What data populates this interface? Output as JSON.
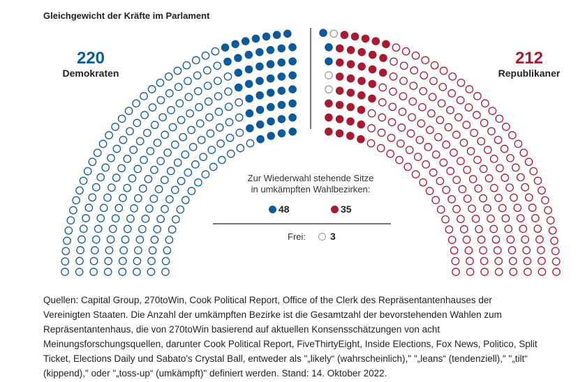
{
  "title": "Gleichgewicht der Kräfte im Parlament",
  "colors": {
    "democrat": "#0b5a9c",
    "republican": "#a9192f",
    "vacant": "#9a9a9a",
    "divider": "#777777"
  },
  "chart_data": {
    "type": "parliament",
    "total_seats": 435,
    "rings": 8,
    "parties": [
      {
        "name": "Demokraten",
        "seats": 220,
        "contested": 48
      },
      {
        "name": "Republikaner",
        "seats": 212,
        "contested": 35
      }
    ],
    "vacant": 3,
    "legend": {
      "heading_line1": "Zur Wiederwahl stehende Sitze",
      "heading_line2": "in umkämpften Wahlbezirken:",
      "dem_contested": "48",
      "rep_contested": "35",
      "vacant_label": "Frei:",
      "vacant_value": "3"
    }
  },
  "left_label": {
    "count": "220",
    "name": "Demokraten"
  },
  "right_label": {
    "count": "212",
    "name": "Republikaner"
  },
  "footer_lines": [
    "Quellen: Capital Group, 270toWin, Cook Political Report, Office of the Clerk des Repräsentantenhauses der",
    "Vereinigten Staaten. Die Anzahl der umkämpften Bezirke ist die Gesamtzahl der bevorstehenden Wahlen zum",
    "Repräsentantenhaus, die von 270toWin basierend auf aktuellen Konsensschätzungen von acht",
    "Meinungsforschungsquellen, darunter Cook Political Report, FiveThirtyEight, Inside Elections, Fox News, Politico, Split",
    "Ticket, Elections Daily und Sabato's Crystal Ball, entweder als \"„likely“ (wahrscheinlich),\" \"„leans“ (tendenziell),\" \"„tilt“",
    "(kippend),\" oder \"„toss-up“ (umkämpft)\" definiert werden. Stand: 14. Oktober 2022."
  ]
}
